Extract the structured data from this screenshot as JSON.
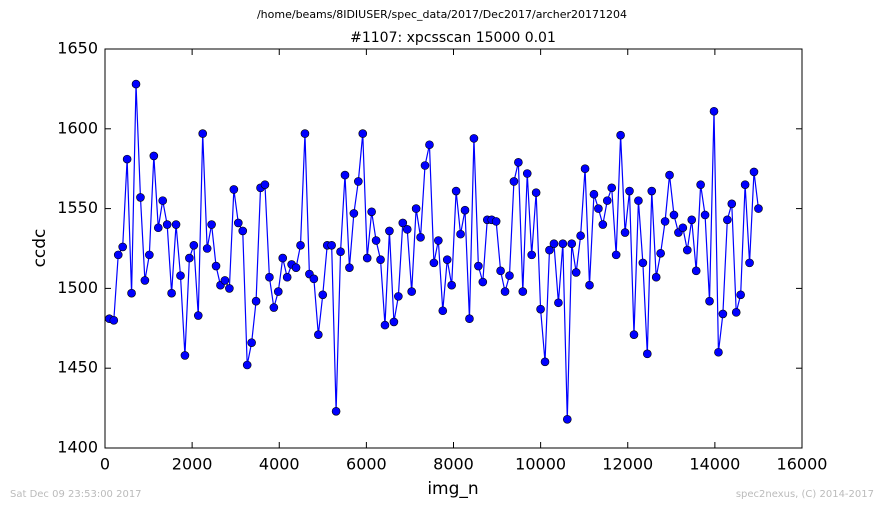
{
  "chart_data": {
    "type": "line",
    "suptitle": "/home/beams/8IDIUSER/spec_data/2017/Dec2017/archer20171204",
    "title": "#1107: xpcsscan 15000 0.01",
    "xlabel": "img_n",
    "ylabel": "ccdc",
    "footer_left": "Sat Dec 09 23:53:00 2017",
    "footer_right": "spec2nexus, (C) 2014-2017",
    "xlim": [
      0,
      16000
    ],
    "xticks": [
      0,
      2000,
      4000,
      6000,
      8000,
      10000,
      12000,
      14000,
      16000
    ],
    "ylim": [
      1400,
      1650
    ],
    "yticks": [
      1400,
      1450,
      1500,
      1550,
      1600,
      1650
    ],
    "x": [
      100,
      202,
      304,
      406,
      508,
      610,
      712,
      814,
      916,
      1018,
      1121,
      1223,
      1325,
      1427,
      1529,
      1631,
      1733,
      1835,
      1937,
      2039,
      2141,
      2243,
      2345,
      2447,
      2549,
      2651,
      2753,
      2855,
      2958,
      3060,
      3162,
      3264,
      3366,
      3468,
      3570,
      3672,
      3774,
      3876,
      3978,
      4080,
      4182,
      4284,
      4386,
      4488,
      4590,
      4692,
      4795,
      4897,
      4999,
      5101,
      5203,
      5305,
      5407,
      5509,
      5611,
      5713,
      5815,
      5917,
      6019,
      6121,
      6223,
      6325,
      6427,
      6529,
      6632,
      6734,
      6836,
      6938,
      7040,
      7142,
      7244,
      7346,
      7448,
      7550,
      7652,
      7754,
      7856,
      7958,
      8060,
      8162,
      8264,
      8366,
      8469,
      8571,
      8673,
      8775,
      8877,
      8979,
      9081,
      9183,
      9285,
      9387,
      9489,
      9591,
      9693,
      9795,
      9897,
      9999,
      10101,
      10203,
      10306,
      10408,
      10510,
      10612,
      10714,
      10816,
      10918,
      11020,
      11122,
      11224,
      11326,
      11428,
      11530,
      11632,
      11734,
      11836,
      11938,
      12040,
      12143,
      12245,
      12347,
      12449,
      12551,
      12653,
      12755,
      12857,
      12959,
      13061,
      13163,
      13265,
      13367,
      13469,
      13571,
      13673,
      13775,
      13877,
      13980,
      14082,
      14184,
      14286,
      14388,
      14490,
      14592,
      14694,
      14796,
      14898,
      15000
    ],
    "series": [
      {
        "name": "ccdc",
        "color": "#0000ff",
        "values": [
          1481,
          1480,
          1521,
          1526,
          1581,
          1497,
          1628,
          1557,
          1505,
          1521,
          1583,
          1538,
          1555,
          1540,
          1497,
          1540,
          1508,
          1458,
          1519,
          1527,
          1483,
          1597,
          1525,
          1540,
          1514,
          1502,
          1505,
          1500,
          1562,
          1541,
          1536,
          1452,
          1466,
          1492,
          1563,
          1565,
          1507,
          1488,
          1498,
          1519,
          1507,
          1515,
          1513,
          1527,
          1597,
          1509,
          1506,
          1471,
          1496,
          1527,
          1527,
          1423,
          1523,
          1571,
          1513,
          1547,
          1567,
          1597,
          1519,
          1548,
          1530,
          1518,
          1477,
          1536,
          1479,
          1495,
          1541,
          1537,
          1498,
          1550,
          1532,
          1577,
          1590,
          1516,
          1530,
          1486,
          1518,
          1502,
          1561,
          1534,
          1549,
          1481,
          1594,
          1514,
          1504,
          1543,
          1543,
          1542,
          1511,
          1498,
          1508,
          1567,
          1579,
          1498,
          1572,
          1521,
          1560,
          1487,
          1454,
          1524,
          1528,
          1491,
          1528,
          1418,
          1528,
          1510,
          1533,
          1575,
          1502,
          1559,
          1550,
          1540,
          1555,
          1563,
          1521,
          1596,
          1535,
          1561,
          1471,
          1555,
          1516,
          1459,
          1561,
          1507,
          1522,
          1542,
          1571,
          1546,
          1535,
          1538,
          1524,
          1543,
          1511,
          1565,
          1546,
          1492,
          1611,
          1460,
          1484,
          1543,
          1553,
          1485,
          1496,
          1565,
          1516,
          1573,
          1550
        ]
      }
    ]
  }
}
